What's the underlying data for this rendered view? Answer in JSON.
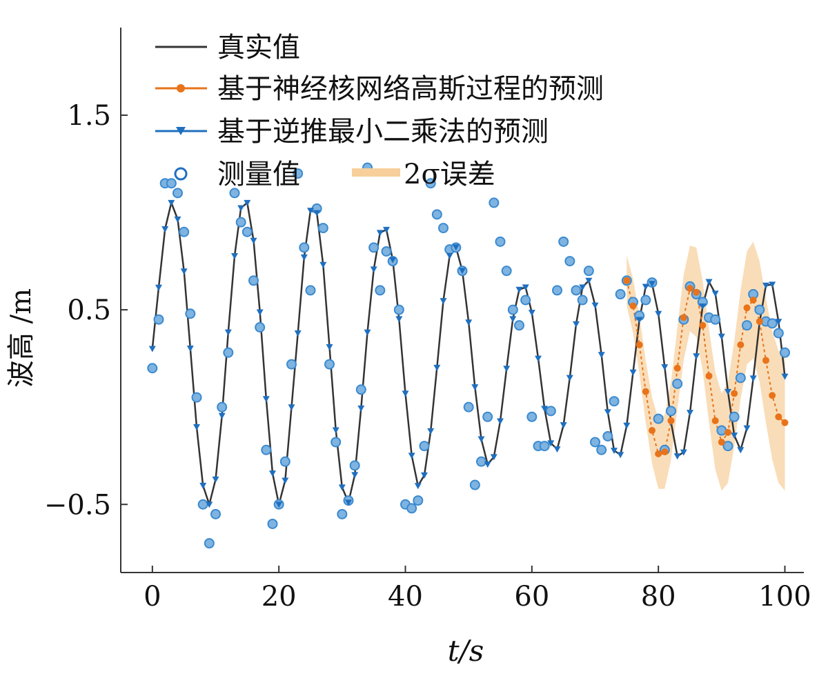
{
  "chart_data": {
    "type": "line",
    "xlabel": "t/s",
    "ylabel": "波高 /m",
    "xlim": [
      -5,
      103
    ],
    "ylim": [
      -0.85,
      1.95
    ],
    "xticks": [
      0,
      20,
      40,
      60,
      80,
      100
    ],
    "yticks": [
      -0.5,
      0.5,
      1.5
    ],
    "xtick_labels": [
      "0",
      "20",
      "40",
      "60",
      "80",
      "100"
    ],
    "ytick_labels": [
      "−0.5",
      "0.5",
      "1.5"
    ],
    "grid": false,
    "legend_placement": "top-left",
    "legend": {
      "true_value": "真实值",
      "nkgp": "基于神经核网络高斯过程的预测",
      "rls": "基于逆推最小二乘法的预测",
      "measured": "测量值",
      "band": "2σ误差"
    },
    "colors": {
      "true_value": "#333333",
      "nkgp": "#e8731a",
      "rls": "#1f6fc0",
      "measured": "#3a8ad0",
      "band": "#f6cf9a"
    },
    "series": [
      {
        "name": "真实值",
        "x": [
          0,
          1,
          2,
          3,
          4,
          5,
          6,
          7,
          8,
          9,
          10,
          11,
          12,
          13,
          14,
          15,
          16,
          17,
          18,
          19,
          20,
          21,
          22,
          23,
          24,
          25,
          26,
          27,
          28,
          29,
          30,
          31,
          32,
          33,
          34,
          35,
          36,
          37,
          38,
          39,
          40,
          41,
          42,
          43,
          44,
          45,
          46,
          47,
          48,
          49,
          50,
          51,
          52,
          53,
          54,
          55,
          56,
          57,
          58,
          59,
          60,
          61,
          62,
          63,
          64,
          65,
          66,
          67,
          68,
          69,
          70,
          71,
          72,
          73,
          74,
          75,
          76,
          77,
          78,
          79,
          80,
          81,
          82,
          83,
          84,
          85,
          86,
          87,
          88,
          89,
          90,
          91,
          92,
          93,
          94,
          95,
          96,
          97,
          98,
          99,
          100
        ],
        "y": [
          0.3,
          0.615,
          0.915,
          1.05,
          0.965,
          0.698,
          0.302,
          -0.102,
          -0.403,
          -0.5,
          -0.371,
          -0.044,
          0.385,
          0.777,
          1.023,
          1.05,
          0.856,
          0.488,
          0.042,
          -0.34,
          -0.5,
          -0.377,
          0.0,
          0.38,
          0.77,
          1.01,
          0.998,
          0.732,
          0.309,
          -0.118,
          -0.412,
          -0.49,
          -0.348,
          -0.006,
          0.384,
          0.708,
          0.896,
          0.912,
          0.757,
          0.453,
          0.07,
          -0.249,
          -0.404,
          -0.35,
          -0.123,
          0.203,
          0.546,
          0.778,
          0.822,
          0.701,
          0.436,
          0.103,
          -0.164,
          -0.294,
          -0.256,
          -0.072,
          0.198,
          0.453,
          0.604,
          0.616,
          0.486,
          0.25,
          -0.008,
          -0.185,
          -0.216,
          -0.092,
          0.151,
          0.427,
          0.616,
          0.65,
          0.523,
          0.269,
          -0.025,
          -0.223,
          -0.245,
          -0.094,
          0.179,
          0.449,
          0.619,
          0.634,
          0.48,
          0.206,
          -0.078,
          -0.252,
          -0.232,
          -0.028,
          0.262,
          0.518,
          0.644,
          0.584,
          0.363,
          0.079,
          -0.145,
          -0.22,
          -0.108,
          0.148,
          0.434,
          0.625,
          0.63,
          0.439,
          0.158
        ]
      },
      {
        "name": "基于神经核网络高斯过程的预测",
        "x": [
          75,
          76,
          77,
          78,
          79,
          80,
          81,
          82,
          83,
          84,
          85,
          86,
          87,
          88,
          89,
          90,
          91,
          92,
          93,
          94,
          95,
          96,
          97,
          98,
          99,
          100
        ],
        "y": [
          0.65,
          0.52,
          0.32,
          0.08,
          -0.12,
          -0.24,
          -0.23,
          -0.07,
          0.2,
          0.46,
          0.61,
          0.59,
          0.42,
          0.16,
          -0.07,
          -0.18,
          -0.13,
          0.07,
          0.32,
          0.51,
          0.55,
          0.44,
          0.24,
          0.06,
          -0.05,
          -0.08
        ]
      },
      {
        "name": "基于逆推最小二乘法的预测",
        "x": [
          0,
          1,
          2,
          3,
          4,
          5,
          6,
          7,
          8,
          9,
          10,
          11,
          12,
          13,
          14,
          15,
          16,
          17,
          18,
          19,
          20,
          21,
          22,
          23,
          24,
          25,
          26,
          27,
          28,
          29,
          30,
          31,
          32,
          33,
          34,
          35,
          36,
          37,
          38,
          39,
          40,
          41,
          42,
          43,
          44,
          45,
          46,
          47,
          48,
          49,
          50,
          51,
          52,
          53,
          54,
          55,
          56,
          57,
          58,
          59,
          60,
          61,
          62,
          63,
          64,
          65,
          66,
          67,
          68,
          69,
          70,
          71,
          72,
          73,
          74,
          75,
          76,
          77,
          78,
          79,
          80,
          81,
          82,
          83,
          84,
          85,
          86,
          87,
          88,
          89,
          90,
          91,
          92,
          93,
          94,
          95,
          96,
          97,
          98,
          99,
          100
        ],
        "y": [
          0.3,
          0.615,
          0.915,
          1.05,
          0.965,
          0.698,
          0.302,
          -0.102,
          -0.403,
          -0.5,
          -0.371,
          -0.044,
          0.385,
          0.777,
          1.023,
          1.05,
          0.856,
          0.488,
          0.042,
          -0.34,
          -0.5,
          -0.377,
          0.0,
          0.38,
          0.77,
          1.01,
          0.998,
          0.732,
          0.309,
          -0.118,
          -0.412,
          -0.49,
          -0.348,
          -0.006,
          0.384,
          0.708,
          0.896,
          0.912,
          0.757,
          0.453,
          0.07,
          -0.249,
          -0.404,
          -0.35,
          -0.123,
          0.203,
          0.546,
          0.778,
          0.822,
          0.701,
          0.436,
          0.103,
          -0.164,
          -0.294,
          -0.256,
          -0.072,
          0.198,
          0.453,
          0.604,
          0.616,
          0.486,
          0.25,
          -0.008,
          -0.185,
          -0.216,
          -0.092,
          0.151,
          0.427,
          0.616,
          0.65,
          0.523,
          0.269,
          -0.025,
          -0.223,
          -0.245,
          -0.094,
          0.179,
          0.449,
          0.619,
          0.634,
          0.48,
          0.206,
          -0.078,
          -0.252,
          -0.232,
          -0.028,
          0.262,
          0.518,
          0.644,
          0.584,
          0.363,
          0.079,
          -0.145,
          -0.22,
          -0.108,
          0.148,
          0.434,
          0.625,
          0.63,
          0.439,
          0.158
        ]
      },
      {
        "name": "测量值",
        "x": [
          0,
          1,
          2,
          3,
          4,
          5,
          6,
          7,
          8,
          9,
          10,
          11,
          12,
          13,
          14,
          15,
          16,
          17,
          18,
          19,
          20,
          21,
          22,
          23,
          24,
          25,
          26,
          27,
          28,
          29,
          30,
          31,
          32,
          33,
          34,
          35,
          36,
          37,
          38,
          39,
          40,
          41,
          42,
          43,
          44,
          45,
          46,
          47,
          48,
          49,
          50,
          51,
          52,
          53,
          54,
          55,
          56,
          57,
          58,
          59,
          60,
          61,
          62,
          63,
          64,
          65,
          66,
          67,
          68,
          69,
          70,
          71,
          72,
          73,
          74,
          75,
          76,
          77,
          78,
          79,
          80,
          81,
          82,
          83,
          84,
          85,
          86,
          87,
          88,
          89,
          90,
          91,
          92,
          93,
          94,
          95,
          96,
          97,
          98,
          99,
          100
        ],
        "y": [
          0.2,
          0.45,
          1.15,
          1.15,
          1.1,
          0.9,
          0.48,
          0.05,
          -0.5,
          -0.7,
          -0.55,
          0.0,
          0.28,
          1.1,
          0.95,
          0.9,
          0.65,
          0.41,
          -0.22,
          -0.6,
          -0.5,
          -0.28,
          0.22,
          1.2,
          0.82,
          0.6,
          1.02,
          0.92,
          0.22,
          -0.18,
          -0.55,
          -0.48,
          -0.3,
          0.09,
          1.23,
          0.82,
          0.6,
          0.8,
          0.75,
          0.5,
          -0.5,
          -0.52,
          -0.48,
          -0.2,
          1.15,
          0.99,
          0.92,
          0.81,
          0.82,
          0.7,
          0.0,
          -0.4,
          -0.28,
          -0.05,
          1.05,
          0.85,
          0.7,
          0.5,
          0.42,
          0.55,
          -0.05,
          -0.2,
          -0.2,
          -0.02,
          0.6,
          0.85,
          0.75,
          0.6,
          0.55,
          0.7,
          -0.18,
          -0.22,
          -0.15,
          0.03,
          0.58,
          0.65,
          0.54,
          0.47,
          0.55,
          0.64,
          -0.06,
          -0.22,
          -0.02,
          0.12,
          0.45,
          0.62,
          0.58,
          0.54,
          0.46,
          0.45,
          -0.12,
          -0.2,
          -0.05,
          0.15,
          0.42,
          0.58,
          0.5,
          0.44,
          0.43,
          0.38,
          0.28
        ]
      }
    ],
    "band": {
      "name": "2σ误差",
      "x": [
        75,
        76,
        77,
        78,
        79,
        80,
        81,
        82,
        83,
        84,
        85,
        86,
        87,
        88,
        89,
        90,
        91,
        92,
        93,
        94,
        95,
        96,
        97,
        98,
        99,
        100
      ],
      "upper": [
        0.78,
        0.66,
        0.47,
        0.24,
        0.05,
        -0.06,
        -0.04,
        0.13,
        0.41,
        0.68,
        0.83,
        0.82,
        0.65,
        0.4,
        0.18,
        0.07,
        0.13,
        0.34,
        0.6,
        0.8,
        0.85,
        0.75,
        0.56,
        0.39,
        0.29,
        0.27
      ],
      "lower": [
        0.52,
        0.38,
        0.17,
        -0.08,
        -0.29,
        -0.42,
        -0.42,
        -0.27,
        -0.01,
        0.24,
        0.39,
        0.36,
        0.19,
        -0.08,
        -0.32,
        -0.43,
        -0.39,
        -0.2,
        0.04,
        0.22,
        0.25,
        0.13,
        -0.08,
        -0.27,
        -0.39,
        -0.43
      ]
    }
  }
}
